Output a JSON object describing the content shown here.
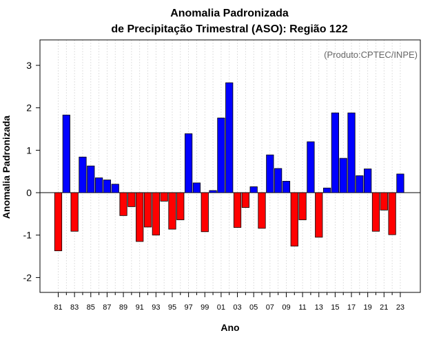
{
  "chart_data": {
    "type": "bar",
    "title_line1": "Anomalia Padronizada",
    "title_line2": "de Precipitação Trimestral (ASO): Região 122",
    "credit": "(Produto:CPTEC/INPE)",
    "xlabel": "Ano",
    "ylabel": "Anomalia Padronizada",
    "ylim": [
      -2.35,
      3.6
    ],
    "yticks": [
      -2,
      -1,
      0,
      1,
      2,
      3
    ],
    "ytick_labels": [
      "-2",
      "-1",
      "0",
      "1",
      "2",
      "3"
    ],
    "xtick_labels": [
      "81",
      "83",
      "85",
      "87",
      "89",
      "91",
      "93",
      "95",
      "97",
      "99",
      "01",
      "03",
      "05",
      "07",
      "09",
      "11",
      "13",
      "15",
      "17",
      "19",
      "21",
      "23"
    ],
    "years": [
      1981,
      1982,
      1983,
      1984,
      1985,
      1986,
      1987,
      1988,
      1989,
      1990,
      1991,
      1992,
      1993,
      1994,
      1995,
      1996,
      1997,
      1998,
      1999,
      2000,
      2001,
      2002,
      2003,
      2004,
      2005,
      2006,
      2007,
      2008,
      2009,
      2010,
      2011,
      2012,
      2013,
      2014,
      2015,
      2016,
      2017,
      2018,
      2019,
      2020,
      2021,
      2022,
      2023
    ],
    "values": [
      -1.37,
      1.83,
      -0.91,
      0.84,
      0.63,
      0.35,
      0.3,
      0.2,
      -0.54,
      -0.33,
      -1.15,
      -0.81,
      -1.0,
      -0.2,
      -0.86,
      -0.64,
      1.39,
      0.23,
      -0.92,
      0.05,
      1.76,
      2.59,
      -0.82,
      -0.35,
      0.14,
      -0.84,
      0.89,
      0.57,
      0.27,
      -1.26,
      -0.64,
      1.2,
      -1.05,
      0.11,
      1.88,
      0.81,
      1.88,
      0.4,
      0.56,
      -0.91,
      -0.41,
      -0.99,
      0.44
    ],
    "colors": {
      "positive": "#0000ff",
      "negative": "#ff0000",
      "outline": "#000000",
      "grid": "#d8d8d8"
    }
  }
}
